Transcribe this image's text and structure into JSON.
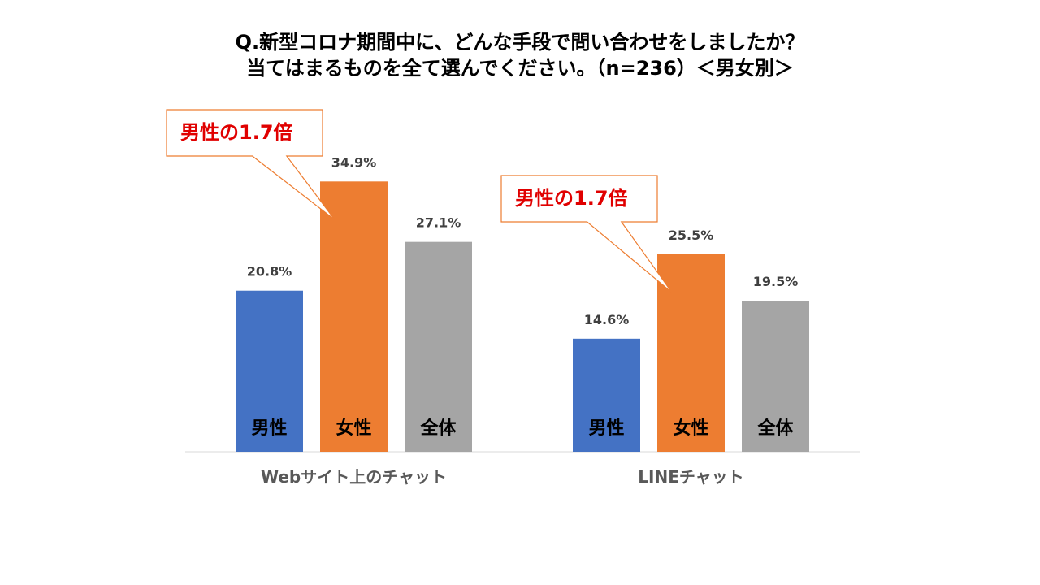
{
  "chart_data": {
    "type": "bar",
    "title": [
      "Q.新型コロナ期間中に、どんな手段で問い合わせをしましたか？",
      "当てはまるものを全て選んでください。（n=236）＜男女別＞"
    ],
    "categories": [
      "Webサイト上のチャット",
      "LINEチャット"
    ],
    "series": [
      {
        "name": "男性",
        "color": "#4472C4",
        "values": [
          20.8,
          14.6
        ],
        "labels": [
          "20.8%",
          "14.6%"
        ]
      },
      {
        "name": "女性",
        "color": "#ED7D31",
        "values": [
          34.9,
          25.5
        ],
        "labels": [
          "34.9%",
          "25.5%"
        ]
      },
      {
        "name": "全体",
        "color": "#A5A5A5",
        "values": [
          27.1,
          19.5
        ],
        "labels": [
          "27.1%",
          "19.5%"
        ]
      }
    ],
    "ylim": [
      0,
      38.5
    ],
    "grid": false,
    "legend": "in-bar",
    "annotations": [
      {
        "text": "男性の1.7倍",
        "category": "Webサイト上のチャット",
        "series": "女性",
        "color": "#E00000"
      },
      {
        "text": "男性の1.7倍",
        "category": "LINEチャット",
        "series": "女性",
        "color": "#E00000"
      }
    ]
  }
}
